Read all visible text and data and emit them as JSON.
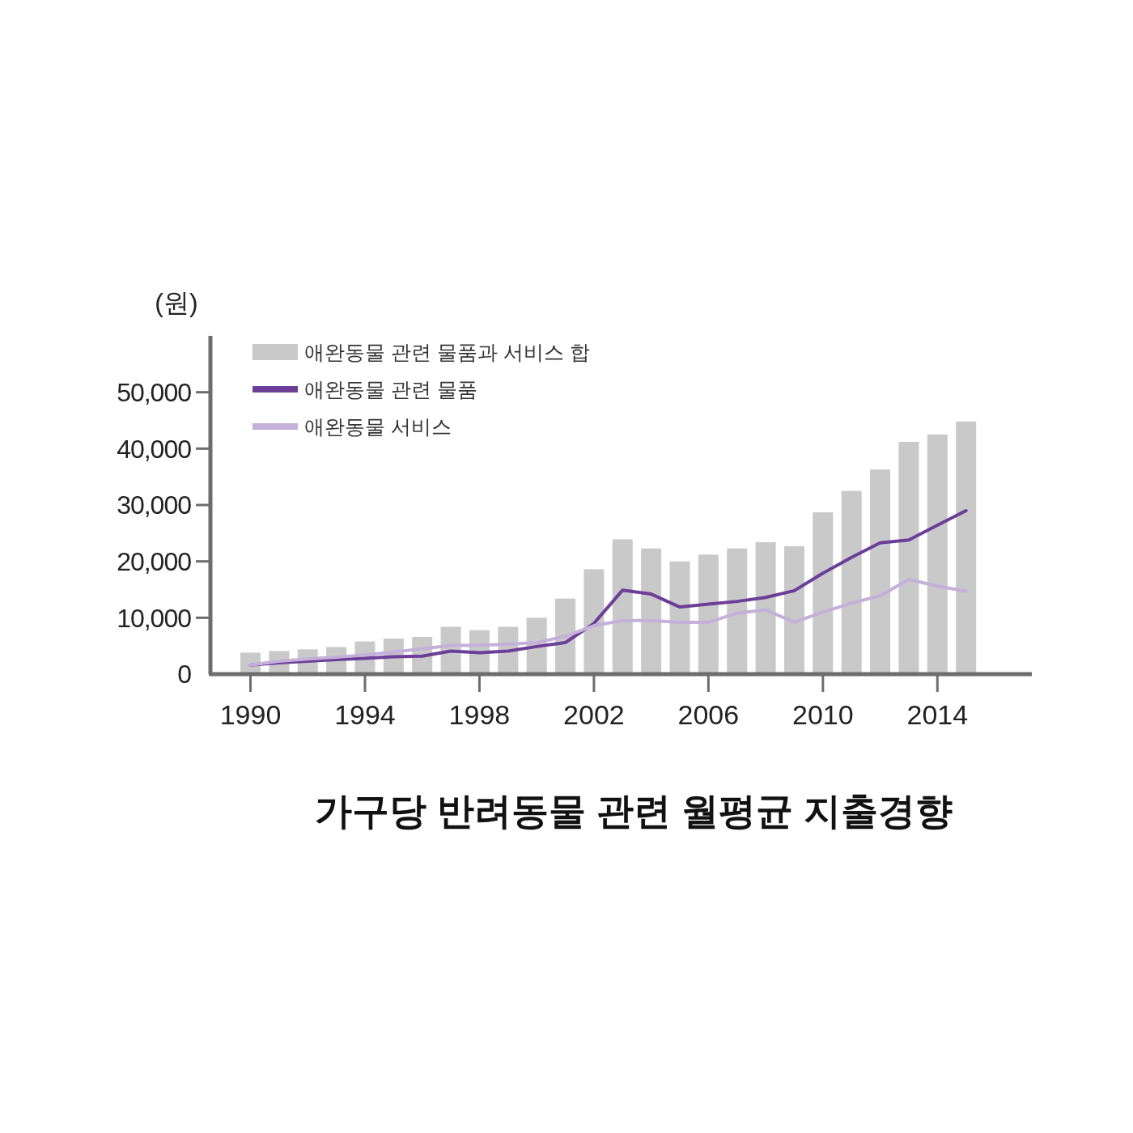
{
  "chart_data": {
    "type": "bar",
    "title": "가구당 반려동물 관련 월평균 지출경향",
    "ylabel": "(원)",
    "x": [
      1990,
      1991,
      1992,
      1993,
      1994,
      1995,
      1996,
      1997,
      1998,
      1999,
      2000,
      2001,
      2002,
      2003,
      2004,
      2005,
      2006,
      2007,
      2008,
      2009,
      2010,
      2011,
      2012,
      2013,
      2014,
      2015
    ],
    "series": [
      {
        "name": "애완동물 관련 물품과 서비스 합",
        "color": "#c8c9c8",
        "values": [
          3800,
          4100,
          4400,
          4800,
          5800,
          6300,
          6600,
          8400,
          7800,
          8400,
          10000,
          13400,
          18600,
          23900,
          22300,
          20000,
          21200,
          22300,
          23400,
          22700,
          28700,
          32500,
          36300,
          41200,
          42500,
          44800
        ]
      },
      {
        "name": "애완동물 관련 물품",
        "type": "line",
        "color": "#6b3f98",
        "values": [
          1600,
          2000,
          2300,
          2600,
          2800,
          3100,
          3200,
          4100,
          3800,
          4100,
          4900,
          5600,
          9000,
          14900,
          14200,
          11900,
          12400,
          12900,
          13600,
          14800,
          17900,
          20700,
          23300,
          23800,
          26400,
          29000
        ]
      },
      {
        "name": "애완동물 서비스",
        "type": "line",
        "color": "#c4b0d9",
        "values": [
          1600,
          2300,
          2700,
          3000,
          3400,
          3900,
          4500,
          5100,
          5100,
          5300,
          5600,
          6700,
          8600,
          9500,
          9500,
          9200,
          9200,
          10800,
          11400,
          9200,
          11000,
          12600,
          13900,
          16800,
          15600,
          14700
        ]
      }
    ],
    "xlim": [
      1988.6,
      2017.3
    ],
    "xticks": [
      1990,
      1994,
      1998,
      2002,
      2006,
      2010,
      2014
    ],
    "ylim": [
      0,
      60000
    ],
    "yticks": [
      0,
      {
        "value": 10000,
        "label": "10,000"
      },
      {
        "value": 20000,
        "label": "20,000"
      },
      {
        "value": 30000,
        "label": "30,000"
      },
      {
        "value": 40000,
        "label": "40,000"
      },
      {
        "value": 50000,
        "label": "50,000"
      }
    ],
    "legend": "top left",
    "grid": false
  }
}
